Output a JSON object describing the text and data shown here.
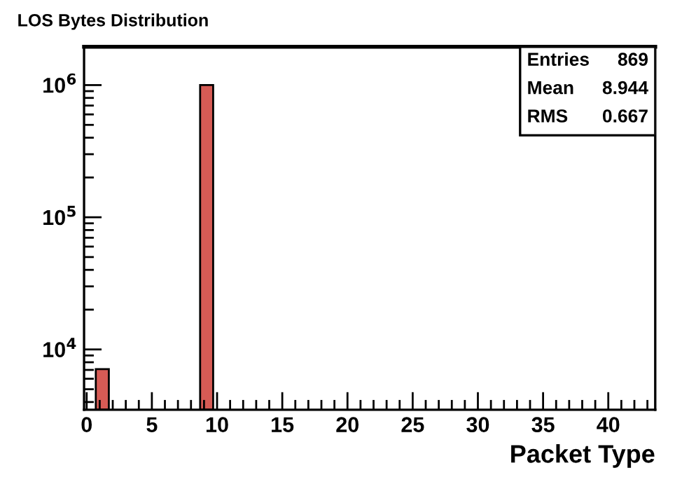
{
  "chart_data": {
    "type": "histogram",
    "title": "LOS Bytes Distribution",
    "xlabel": "Packet Type",
    "bins": [
      0.7,
      1.7,
      2.7,
      3.7,
      4.7,
      5.7,
      6.7,
      7.7,
      8.7,
      9.7
    ],
    "values": [
      7100,
      null,
      null,
      null,
      null,
      null,
      null,
      null,
      1000000
    ],
    "color": "#d65b55",
    "log": "y",
    "xlim": [
      -0.2,
      43.6
    ],
    "xticks": [
      0,
      5,
      10,
      15,
      20,
      25,
      30,
      35,
      40
    ],
    "ylim": [
      3500,
      1950000
    ],
    "yticks": [
      {
        "value": 10000,
        "label": "10$^{4}$"
      },
      {
        "value": 100000,
        "label": "10$^{5}$"
      },
      {
        "value": 1000000,
        "label": "10$^{6}$"
      }
    ],
    "annotations": [
      "Entries",
      "869",
      "Mean",
      "8.944",
      "RMS",
      "0.667"
    ]
  }
}
